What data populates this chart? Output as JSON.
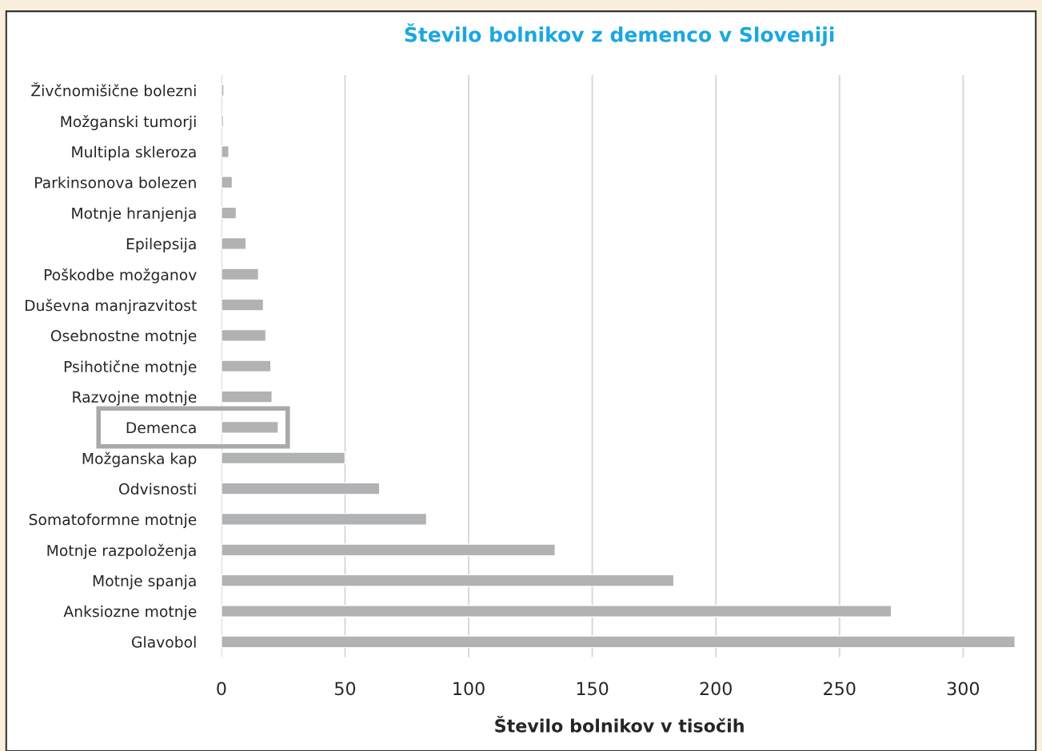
{
  "chart_data": {
    "type": "bar",
    "orientation": "horizontal",
    "title": "Število bolnikov z demenco v Sloveniji",
    "xlabel": "Število bolnikov v tisočih",
    "categories": [
      "Živčnomišične bolezni",
      "Možganski tumorji",
      "Multipla skleroza",
      "Parkinsonova bolezen",
      "Motnje hranjenja",
      "Epilepsija",
      "Poškodbe možganov",
      "Duševna manjrazvitost",
      "Osebnostne motnje",
      "Psihotične motnje",
      "Razvojne motnje",
      "Demenca",
      "Možganska kap",
      "Odvisnosti",
      "Somatoformne motnje",
      "Motnje razpoloženja",
      "Motnje spanja",
      "Anksiozne motnje",
      "Glavobol"
    ],
    "values": [
      1,
      0.8,
      3,
      4.4,
      6,
      10,
      15,
      17,
      18,
      20,
      20.5,
      23,
      50,
      64,
      83,
      135,
      183,
      271,
      321
    ],
    "color": "#b1b2b4",
    "xlim": [
      0,
      322
    ],
    "xticks": [
      0,
      50,
      100,
      150,
      200,
      250,
      300
    ],
    "grid": "x",
    "legend": false
  }
}
